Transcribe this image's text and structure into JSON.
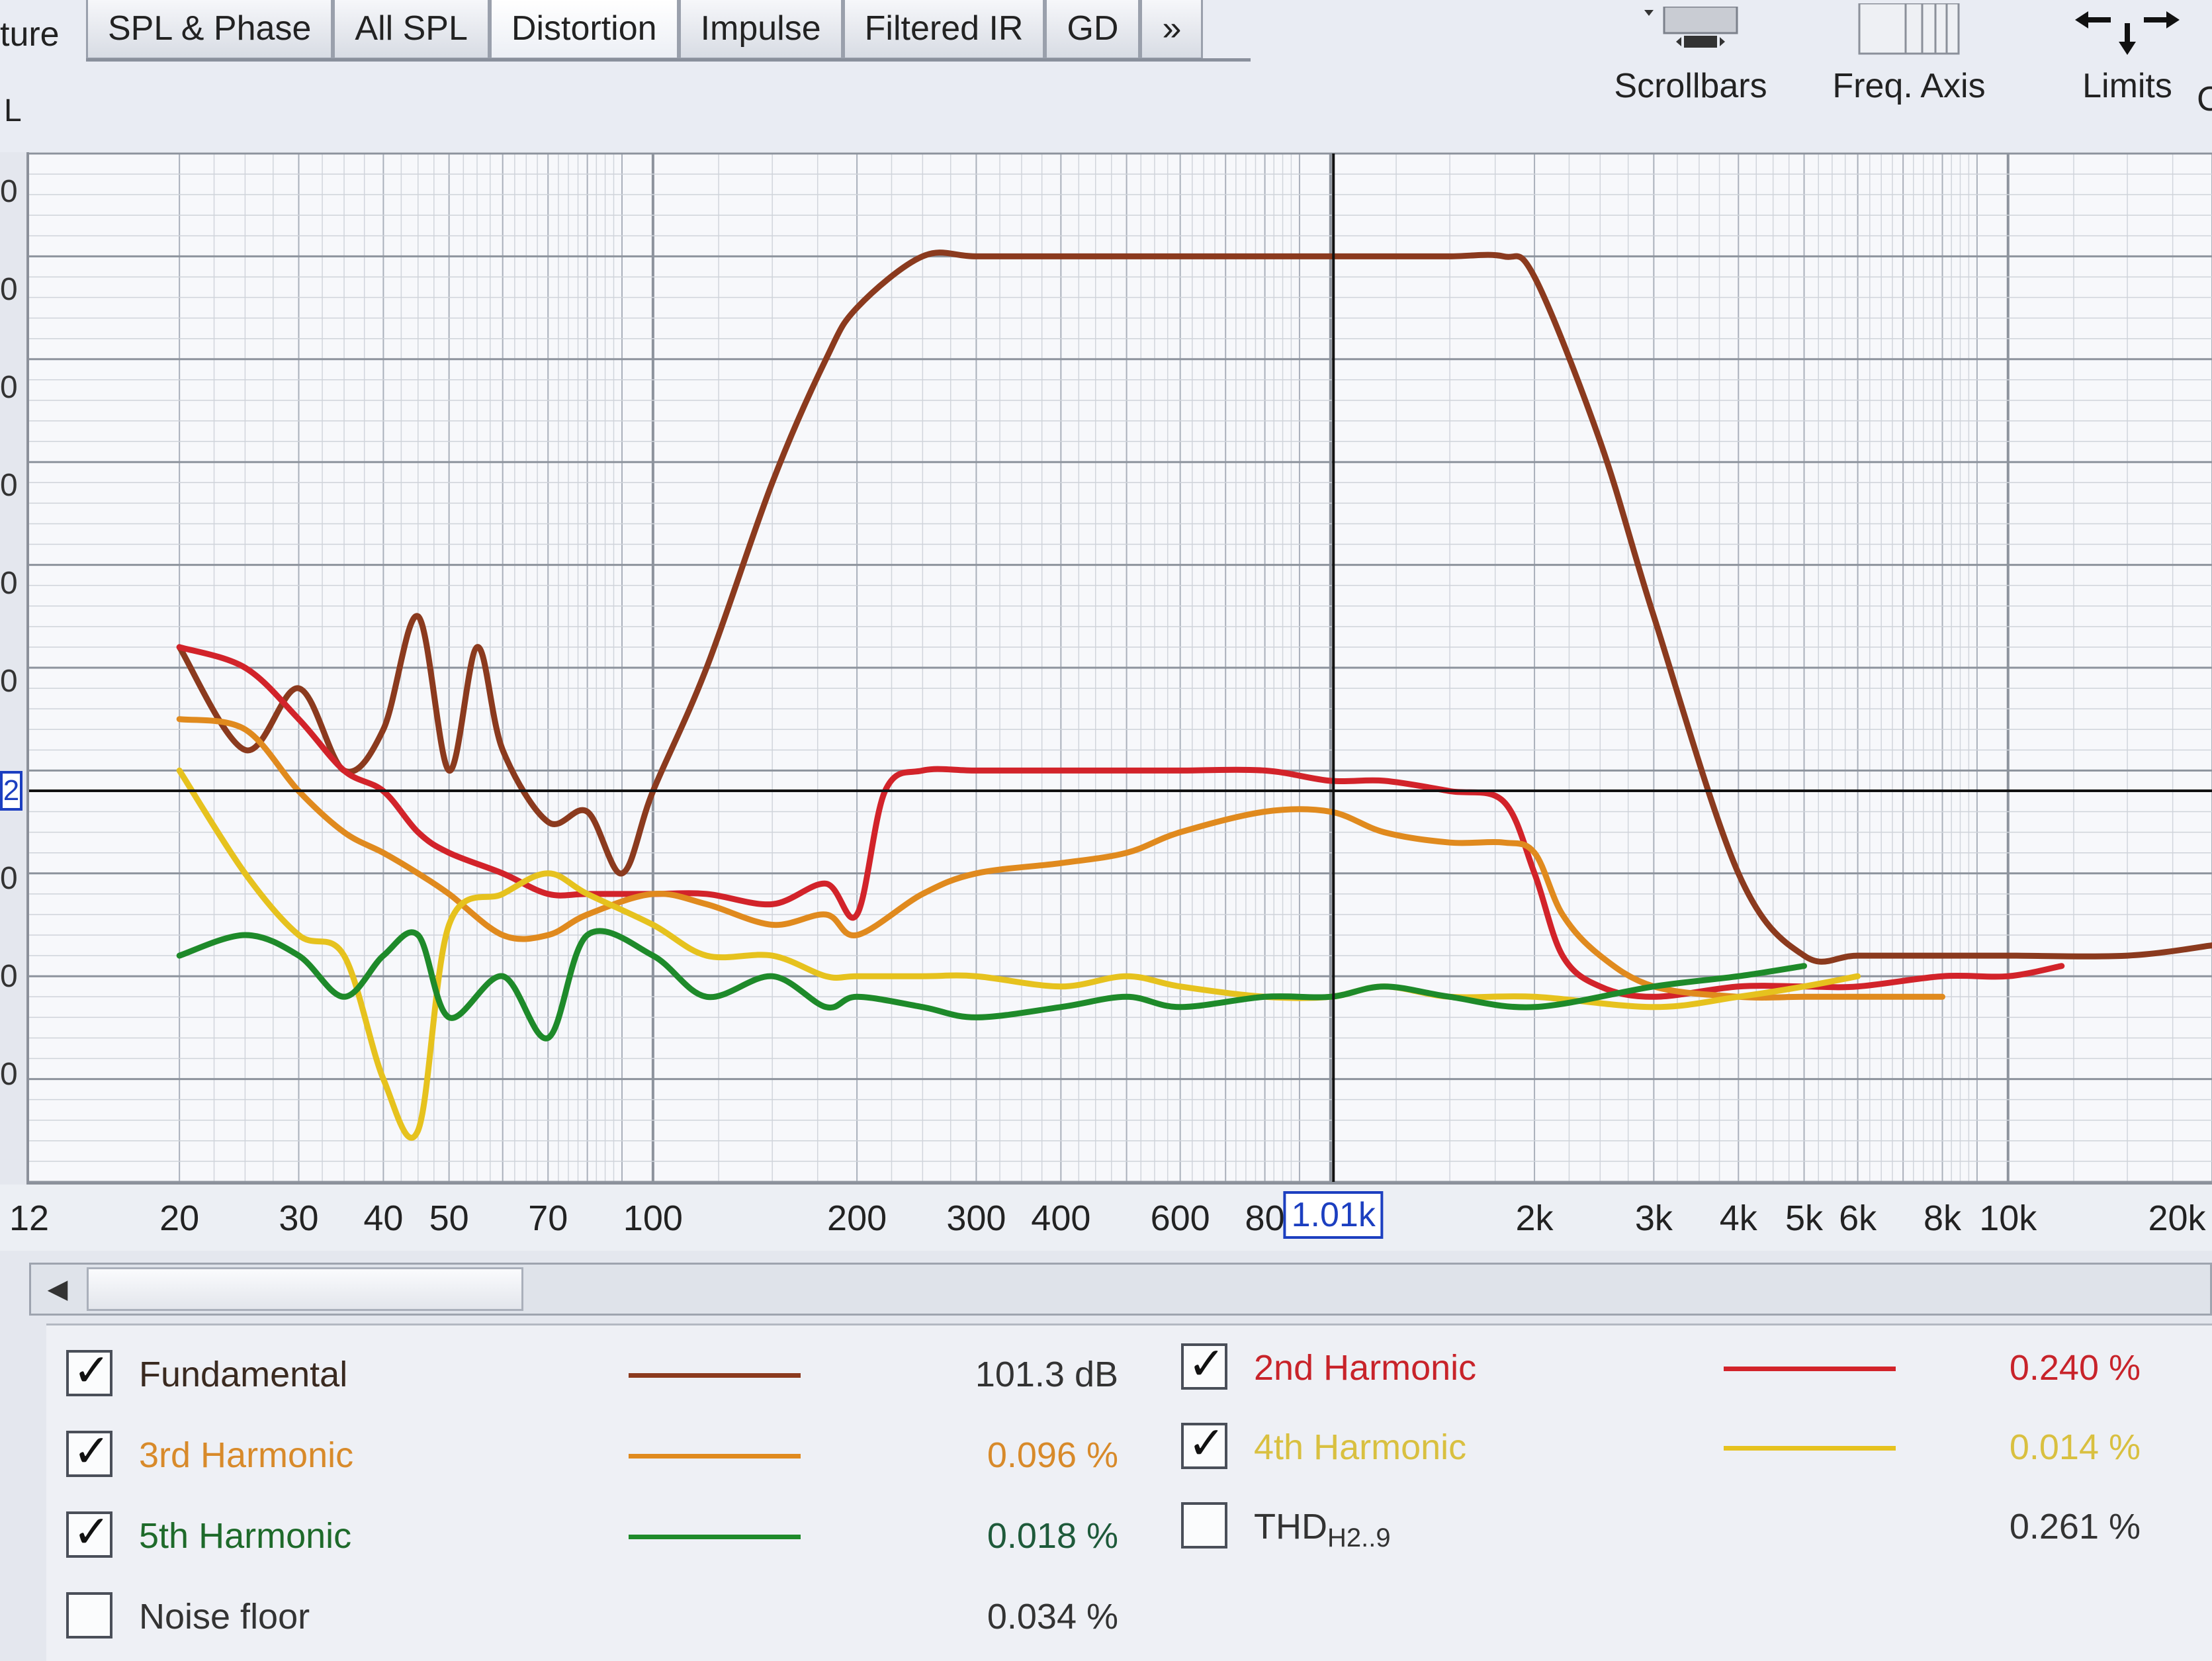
{
  "tabs": {
    "cut_left": "ture",
    "items": [
      "SPL & Phase",
      "All SPL",
      "Distortion",
      "Impulse",
      "Filtered IR",
      "GD",
      "»"
    ],
    "active": "Distortion"
  },
  "left_label": "L",
  "toolbar": {
    "scrollbars_label": "Scrollbars",
    "freq_axis_label": "Freq. Axis",
    "limits_label": "Limits",
    "cut_label": "C"
  },
  "y_axis": {
    "tick_labels": [
      "0",
      "0",
      "0",
      "0",
      "0",
      "0",
      "0",
      "0",
      "0"
    ],
    "cursor_label": "2"
  },
  "x_axis": {
    "tick_labels": [
      "12",
      "20",
      "30",
      "40",
      "50",
      "70",
      "100",
      "200",
      "300",
      "400",
      "600",
      "80",
      "2k",
      "3k",
      "4k",
      "5k",
      "6k",
      "8k",
      "10k",
      "20k"
    ],
    "cursor_label": "1.01k"
  },
  "legend": {
    "fundamental": {
      "name": "Fundamental",
      "value": "101.3 dB",
      "checked": true,
      "color": "#8b3a1e"
    },
    "h2": {
      "name": "2nd Harmonic",
      "value": "0.240 %",
      "checked": true,
      "color": "#d2232a"
    },
    "h3": {
      "name": "3rd Harmonic",
      "value": "0.096 %",
      "checked": true,
      "color": "#e08a1e"
    },
    "h4": {
      "name": "4th Harmonic",
      "value": "0.014 %",
      "checked": true,
      "color": "#e6c21e"
    },
    "h5": {
      "name": "5th Harmonic",
      "value": "0.018 %",
      "checked": true,
      "color": "#1e8a2a"
    },
    "thd": {
      "name": "THD",
      "sub": "H2..9",
      "value": "0.261 %",
      "checked": false
    },
    "noise": {
      "name": "Noise floor",
      "value": "0.034 %",
      "checked": false
    }
  },
  "chart_data": {
    "type": "line",
    "x_scale": "log",
    "xlim": [
      12,
      20000
    ],
    "cursor_x": 1010,
    "series": [
      {
        "name": "Fundamental",
        "color": "#8b3a1e",
        "x": [
          20,
          25,
          30,
          35,
          40,
          45,
          50,
          55,
          60,
          70,
          80,
          90,
          100,
          120,
          150,
          180,
          200,
          250,
          300,
          400,
          500,
          600,
          800,
          1000,
          1200,
          1500,
          1800,
          2000,
          2500,
          3000,
          4000,
          5000,
          6000,
          8000,
          10000,
          15000,
          20000
        ],
        "y": [
          52,
          42,
          48,
          40,
          44,
          55,
          40,
          52,
          42,
          35,
          36,
          30,
          38,
          50,
          68,
          80,
          85,
          90,
          90,
          90,
          90,
          90,
          90,
          90,
          90,
          90,
          90,
          88,
          72,
          55,
          30,
          22,
          22,
          22,
          22,
          22,
          23
        ]
      },
      {
        "name": "2nd Harmonic",
        "color": "#d2232a",
        "x": [
          20,
          25,
          30,
          35,
          40,
          45,
          50,
          60,
          70,
          80,
          100,
          120,
          150,
          180,
          200,
          220,
          250,
          300,
          400,
          500,
          600,
          800,
          1000,
          1200,
          1500,
          1800,
          2000,
          2200,
          2500,
          3000,
          4000,
          5000,
          6000,
          8000,
          10000,
          12000
        ],
        "y": [
          52,
          50,
          45,
          40,
          38,
          34,
          32,
          30,
          28,
          28,
          28,
          28,
          27,
          29,
          26,
          38,
          40,
          40,
          40,
          40,
          40,
          40,
          39,
          39,
          38,
          37,
          30,
          22,
          19,
          18,
          19,
          19,
          19,
          20,
          20,
          21
        ]
      },
      {
        "name": "3rd Harmonic",
        "color": "#e08a1e",
        "x": [
          20,
          25,
          30,
          35,
          40,
          45,
          50,
          60,
          70,
          80,
          100,
          120,
          150,
          180,
          200,
          250,
          300,
          400,
          500,
          600,
          800,
          1000,
          1200,
          1500,
          1800,
          2000,
          2200,
          2500,
          3000,
          4000,
          5000,
          6000,
          8000
        ],
        "y": [
          45,
          44,
          38,
          34,
          32,
          30,
          28,
          24,
          24,
          26,
          28,
          27,
          25,
          26,
          24,
          28,
          30,
          31,
          32,
          34,
          36,
          36,
          34,
          33,
          33,
          32,
          26,
          22,
          19,
          18,
          18,
          18,
          18
        ]
      },
      {
        "name": "4th Harmonic",
        "color": "#e6c21e",
        "x": [
          20,
          25,
          30,
          35,
          40,
          45,
          50,
          60,
          70,
          80,
          100,
          120,
          150,
          180,
          200,
          250,
          300,
          400,
          500,
          600,
          800,
          1000,
          1200,
          1500,
          2000,
          3000,
          4000,
          5000,
          6000
        ],
        "y": [
          40,
          30,
          24,
          22,
          10,
          5,
          25,
          28,
          30,
          28,
          25,
          22,
          22,
          20,
          20,
          20,
          20,
          19,
          20,
          19,
          18,
          18,
          19,
          18,
          18,
          17,
          18,
          19,
          20
        ]
      },
      {
        "name": "5th Harmonic",
        "color": "#1e8a2a",
        "x": [
          20,
          25,
          30,
          35,
          40,
          45,
          50,
          60,
          70,
          80,
          100,
          120,
          150,
          180,
          200,
          250,
          300,
          400,
          500,
          600,
          800,
          1000,
          1200,
          1500,
          2000,
          3000,
          4000,
          5000
        ],
        "y": [
          22,
          24,
          22,
          18,
          22,
          24,
          16,
          20,
          14,
          24,
          22,
          18,
          20,
          17,
          18,
          17,
          16,
          17,
          18,
          17,
          18,
          18,
          19,
          18,
          17,
          19,
          20,
          21
        ]
      }
    ]
  }
}
